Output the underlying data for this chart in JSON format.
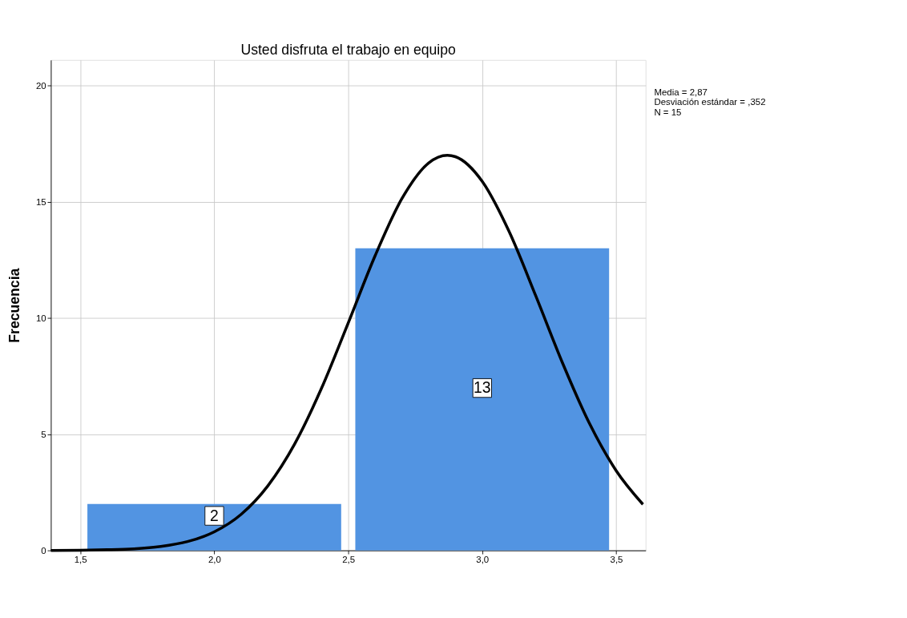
{
  "chart_data": {
    "type": "histogram",
    "title": "Usted disfruta el trabajo en equipo",
    "ylabel": "Frecuencia",
    "bins": [
      1.5,
      2.5,
      3.5
    ],
    "values": [
      2,
      13
    ],
    "color": "#5294e2",
    "value_labels": [
      "2",
      "13"
    ],
    "series": [
      {
        "type": "line",
        "color": "#000000",
        "marker": "none",
        "line_style": "solid",
        "x": [
          1.39,
          1.5,
          1.6,
          1.7,
          1.8,
          1.9,
          2.0,
          2.1,
          2.2,
          2.3,
          2.4,
          2.5,
          2.6,
          2.7,
          2.8,
          2.87,
          2.9,
          3.0,
          3.1,
          3.2,
          3.3,
          3.4,
          3.5,
          3.6
        ],
        "values": [
          0.0,
          0.01,
          0.03,
          0.07,
          0.17,
          0.38,
          0.8,
          1.55,
          2.78,
          4.58,
          6.97,
          9.79,
          12.67,
          15.13,
          16.67,
          17.0,
          16.94,
          15.88,
          13.73,
          10.95,
          8.06,
          5.47,
          3.43,
          1.98
        ]
      }
    ],
    "xlim": [
      1.39,
      3.61
    ],
    "ylim": [
      0,
      21.1
    ],
    "xticks": [
      {
        "value": 1.5,
        "label": "1,5"
      },
      {
        "value": 2.0,
        "label": "2,0"
      },
      {
        "value": 2.5,
        "label": "2,5"
      },
      {
        "value": 3.0,
        "label": "3,0"
      },
      {
        "value": 3.5,
        "label": "3,5"
      }
    ],
    "yticks": [
      0,
      5,
      10,
      15,
      20
    ],
    "grid": true,
    "annotations": [
      "Media = 2,87",
      "Desviación estándar = ,352",
      "N = 15"
    ]
  }
}
